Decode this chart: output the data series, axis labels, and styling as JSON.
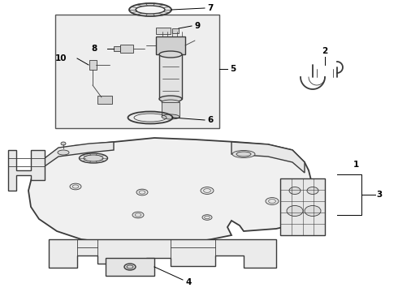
{
  "background_color": "#ffffff",
  "line_color": "#3a3a3a",
  "box_bg": "#e8e8e8",
  "figsize": [
    4.9,
    3.6
  ],
  "dpi": 100,
  "label_fontsize": 7.5
}
